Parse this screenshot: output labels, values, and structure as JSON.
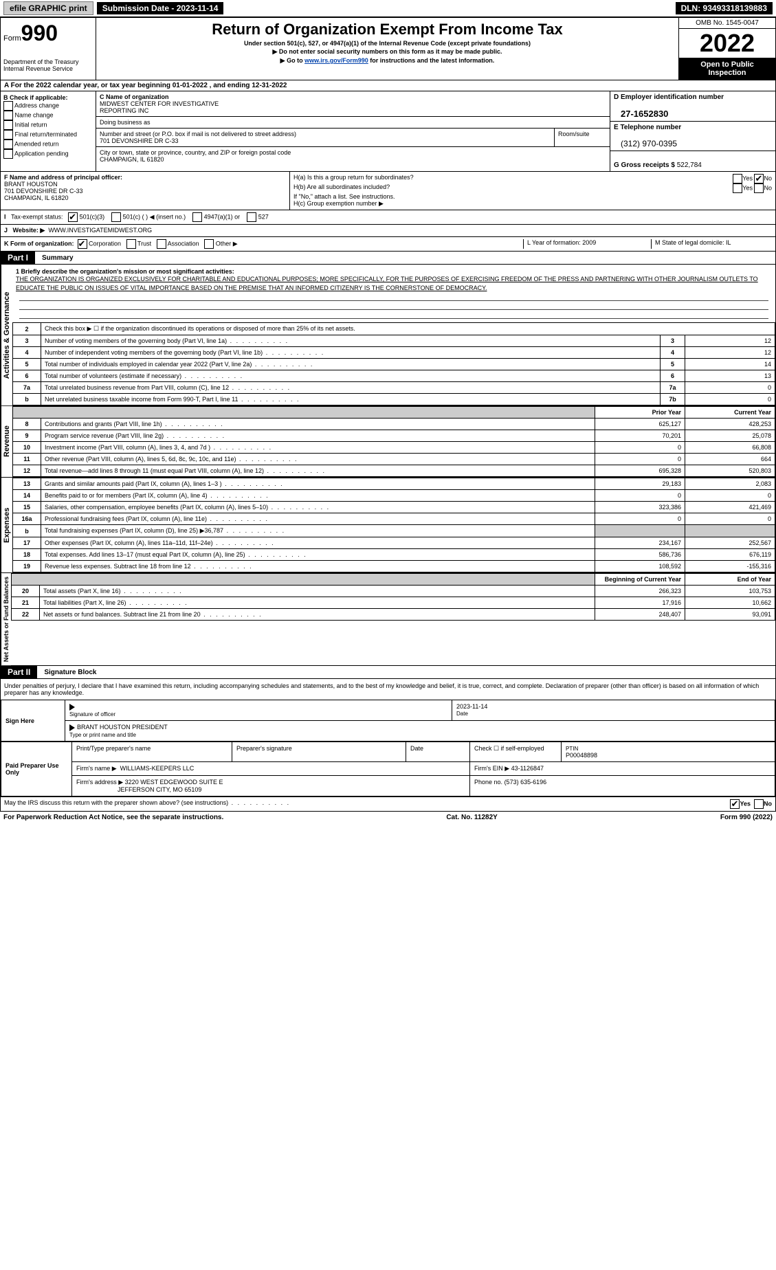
{
  "topbar": {
    "efile": "efile GRAPHIC print",
    "submission": "Submission Date - 2023-11-14",
    "dln": "DLN: 93493318139883"
  },
  "header": {
    "form_word": "Form",
    "form_num": "990",
    "title": "Return of Organization Exempt From Income Tax",
    "subtitle": "Under section 501(c), 527, or 4947(a)(1) of the Internal Revenue Code (except private foundations)",
    "warn": "▶ Do not enter social security numbers on this form as it may be made public.",
    "goto_pre": "▶ Go to ",
    "goto_link": "www.irs.gov/Form990",
    "goto_post": " for instructions and the latest information.",
    "dept": "Department of the Treasury",
    "irs": "Internal Revenue Service",
    "omb": "OMB No. 1545-0047",
    "year": "2022",
    "open1": "Open to Public",
    "open2": "Inspection"
  },
  "rowA": "A For the 2022 calendar year, or tax year beginning 01-01-2022    , and ending 12-31-2022",
  "boxB": {
    "title": "B Check if applicable:",
    "opts": [
      "Address change",
      "Name change",
      "Initial return",
      "Final return/terminated",
      "Amended return",
      "Application pending"
    ]
  },
  "boxC": {
    "c_label": "C Name of organization",
    "org1": "MIDWEST CENTER FOR INVESTIGATIVE",
    "org2": "REPORTING INC",
    "dba": "Doing business as",
    "street_label": "Number and street (or P.O. box if mail is not delivered to street address)",
    "room_label": "Room/suite",
    "street": "701 DEVONSHIRE DR C-33",
    "city_label": "City or town, state or province, country, and ZIP or foreign postal code",
    "city": "CHAMPAIGN, IL  61820"
  },
  "boxD": {
    "label": "D Employer identification number",
    "ein": "27-1652830",
    "e_label": "E Telephone number",
    "phone": "(312) 970-0395",
    "g_label": "G Gross receipts $",
    "g_val": "522,784"
  },
  "rowF": {
    "label": "F  Name and address of principal officer:",
    "name": "BRANT HOUSTON",
    "addr1": "701 DEVONSHIRE DR C-33",
    "addr2": "CHAMPAIGN, IL  61820",
    "ha": "H(a)  Is this a group return for subordinates?",
    "hb": "H(b)  Are all subordinates included?",
    "hb_note": "If \"No,\" attach a list. See instructions.",
    "hc": "H(c)  Group exemption number ▶",
    "yes": "Yes",
    "no": "No"
  },
  "rowI": {
    "label": "Tax-exempt status:",
    "o1": "501(c)(3)",
    "o2": "501(c) (  ) ◀ (insert no.)",
    "o3": "4947(a)(1) or",
    "o4": "527"
  },
  "rowJ": {
    "label": "Website: ▶",
    "val": "WWW.INVESTIGATEMIDWEST.ORG"
  },
  "rowK": {
    "label": "K Form of organization:",
    "o1": "Corporation",
    "o2": "Trust",
    "o3": "Association",
    "o4": "Other ▶",
    "l": "L Year of formation: 2009",
    "m": "M State of legal domicile: IL"
  },
  "part1": {
    "header": "Part I",
    "title": "Summary",
    "q1": "1  Briefly describe the organization's mission or most significant activities:",
    "mission": "THE ORGANIZATION IS ORGANIZED EXCLUSIVELY FOR CHARITABLE AND EDUCATIONAL PURPOSES; MORE SPECIFICALLY, FOR THE PURPOSES OF EXERCISING FREEDOM OF THE PRESS AND PARTNERING WITH OTHER JOURNALISM OUTLETS TO EDUCATE THE PUBLIC ON ISSUES OF VITAL IMPORTANCE BASED ON THE PREMISE THAT AN INFORMED CITIZENRY IS THE CORNERSTONE OF DEMOCRACY.",
    "side1": "Activities & Governance",
    "side2": "Revenue",
    "side3": "Expenses",
    "side4": "Net Assets or Fund Balances",
    "lines_gov": [
      {
        "n": "2",
        "t": "Check this box ▶ ☐  if the organization discontinued its operations or disposed of more than 25% of its net assets."
      },
      {
        "n": "3",
        "t": "Number of voting members of the governing body (Part VI, line 1a)",
        "b": "3",
        "v": "12"
      },
      {
        "n": "4",
        "t": "Number of independent voting members of the governing body (Part VI, line 1b)",
        "b": "4",
        "v": "12"
      },
      {
        "n": "5",
        "t": "Total number of individuals employed in calendar year 2022 (Part V, line 2a)",
        "b": "5",
        "v": "14"
      },
      {
        "n": "6",
        "t": "Total number of volunteers (estimate if necessary)",
        "b": "6",
        "v": "13"
      },
      {
        "n": "7a",
        "t": "Total unrelated business revenue from Part VIII, column (C), line 12",
        "b": "7a",
        "v": "0"
      },
      {
        "n": "b",
        "t": "Net unrelated business taxable income from Form 990-T, Part I, line 11",
        "b": "7b",
        "v": "0"
      }
    ],
    "prior": "Prior Year",
    "current": "Current Year",
    "lines_rev": [
      {
        "n": "8",
        "t": "Contributions and grants (Part VIII, line 1h)",
        "p": "625,127",
        "c": "428,253"
      },
      {
        "n": "9",
        "t": "Program service revenue (Part VIII, line 2g)",
        "p": "70,201",
        "c": "25,078"
      },
      {
        "n": "10",
        "t": "Investment income (Part VIII, column (A), lines 3, 4, and 7d )",
        "p": "0",
        "c": "66,808"
      },
      {
        "n": "11",
        "t": "Other revenue (Part VIII, column (A), lines 5, 6d, 8c, 9c, 10c, and 11e)",
        "p": "0",
        "c": "664"
      },
      {
        "n": "12",
        "t": "Total revenue—add lines 8 through 11 (must equal Part VIII, column (A), line 12)",
        "p": "695,328",
        "c": "520,803"
      }
    ],
    "lines_exp": [
      {
        "n": "13",
        "t": "Grants and similar amounts paid (Part IX, column (A), lines 1–3 )",
        "p": "29,183",
        "c": "2,083"
      },
      {
        "n": "14",
        "t": "Benefits paid to or for members (Part IX, column (A), line 4)",
        "p": "0",
        "c": "0"
      },
      {
        "n": "15",
        "t": "Salaries, other compensation, employee benefits (Part IX, column (A), lines 5–10)",
        "p": "323,386",
        "c": "421,469"
      },
      {
        "n": "16a",
        "t": "Professional fundraising fees (Part IX, column (A), line 11e)",
        "p": "0",
        "c": "0"
      },
      {
        "n": "b",
        "t": "Total fundraising expenses (Part IX, column (D), line 25) ▶36,787",
        "p": "",
        "c": "",
        "shade": true
      },
      {
        "n": "17",
        "t": "Other expenses (Part IX, column (A), lines 11a–11d, 11f–24e)",
        "p": "234,167",
        "c": "252,567"
      },
      {
        "n": "18",
        "t": "Total expenses. Add lines 13–17 (must equal Part IX, column (A), line 25)",
        "p": "586,736",
        "c": "676,119"
      },
      {
        "n": "19",
        "t": "Revenue less expenses. Subtract line 18 from line 12",
        "p": "108,592",
        "c": "-155,316"
      }
    ],
    "begin": "Beginning of Current Year",
    "end": "End of Year",
    "lines_net": [
      {
        "n": "20",
        "t": "Total assets (Part X, line 16)",
        "p": "266,323",
        "c": "103,753"
      },
      {
        "n": "21",
        "t": "Total liabilities (Part X, line 26)",
        "p": "17,916",
        "c": "10,662"
      },
      {
        "n": "22",
        "t": "Net assets or fund balances. Subtract line 21 from line 20",
        "p": "248,407",
        "c": "93,091"
      }
    ]
  },
  "part2": {
    "header": "Part II",
    "title": "Signature Block",
    "decl": "Under penalties of perjury, I declare that I have examined this return, including accompanying schedules and statements, and to the best of my knowledge and belief, it is true, correct, and complete. Declaration of preparer (other than officer) is based on all information of which preparer has any knowledge.",
    "sign_here": "Sign Here",
    "sig_officer": "Signature of officer",
    "date": "Date",
    "sig_date": "2023-11-14",
    "officer_name": "BRANT HOUSTON  PRESIDENT",
    "type_name": "Type or print name and title",
    "paid": "Paid Preparer Use Only",
    "prep_name_label": "Print/Type preparer's name",
    "prep_sig_label": "Preparer's signature",
    "check_self": "Check ☐ if self-employed",
    "ptin_label": "PTIN",
    "ptin": "P00048898",
    "firm_name_label": "Firm's name    ▶",
    "firm_name": "WILLIAMS-KEEPERS LLC",
    "firm_ein_label": "Firm's EIN ▶",
    "firm_ein": "43-1126847",
    "firm_addr_label": "Firm's address ▶",
    "firm_addr1": "3220 WEST EDGEWOOD SUITE E",
    "firm_addr2": "JEFFERSON CITY, MO  65109",
    "phone_label": "Phone no.",
    "phone": "(573) 635-6196",
    "discuss": "May the IRS discuss this return with the preparer shown above? (see instructions)"
  },
  "footer": {
    "left": "For Paperwork Reduction Act Notice, see the separate instructions.",
    "mid": "Cat. No. 11282Y",
    "right": "Form 990 (2022)"
  }
}
